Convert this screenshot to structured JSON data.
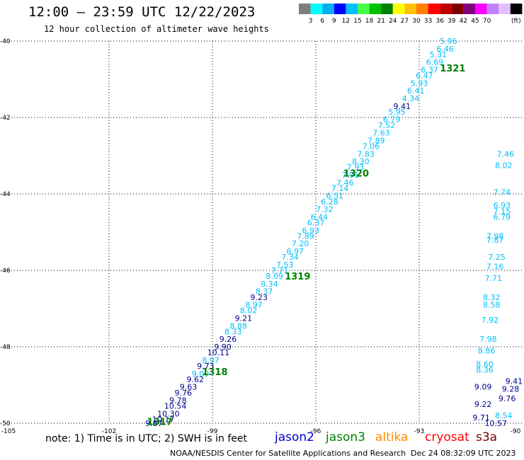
{
  "header": {
    "title": "12:00 – 23:59 UTC 12/22/2023",
    "subtitle": "12 hour collection of altimeter wave heights"
  },
  "colorbar": {
    "colors": [
      "#7f7f7f",
      "#00ffff",
      "#00b0f0",
      "#0000ff",
      "#00bfff",
      "#44ff44",
      "#00c000",
      "#008000",
      "#ffff00",
      "#ffc000",
      "#ff8000",
      "#ff0000",
      "#c00000",
      "#800000",
      "#800080",
      "#ff00ff",
      "#bf7fff",
      "#e0c0ff",
      "#000000"
    ],
    "labels": [
      "3",
      "6",
      "9",
      "12",
      "15",
      "18",
      "21",
      "24",
      "27",
      "30",
      "33",
      "36",
      "39",
      "42",
      "45",
      "70",
      "(ft)"
    ]
  },
  "note": "note:  1) Time is in UTC;  2) SWH is in feet",
  "legend": [
    {
      "label": "jason2",
      "color": "#0000cc"
    },
    {
      "label": "jason3",
      "color": "#008000"
    },
    {
      "label": "altika",
      "color": "#ff8c00"
    },
    {
      "label": "cryosat",
      "color": "#ff0000"
    },
    {
      "label": "s3a",
      "color": "#800000"
    }
  ],
  "footer": {
    "source": "NOAA/NESDIS Center for Satellite Applications and Research",
    "timestamp": "Dec 24 08:32:09 UTC 2023"
  },
  "chart_data": {
    "type": "scatter",
    "xlim": [
      -105,
      -90
    ],
    "ylim": [
      -50,
      -40
    ],
    "xticks": [
      "-105",
      "-102",
      "-99",
      "-96",
      "-93",
      "-90"
    ],
    "yticks": [
      "-40",
      "-42",
      "-44",
      "-46",
      "-48",
      "-50"
    ],
    "grid": true,
    "colors": {
      "cyan": "#00bfff",
      "navy": "#00008b",
      "time": "#008000",
      "red": "#ff0000"
    },
    "track_labels": [
      {
        "text": "1321",
        "lon": -92.4,
        "lat": -40.7
      },
      {
        "text": "1320",
        "lon": -95.2,
        "lat": -43.45
      },
      {
        "text": "1319",
        "lon": -96.9,
        "lat": -46.15
      },
      {
        "text": "1318",
        "lon": -99.3,
        "lat": -48.65
      },
      {
        "text": "1317",
        "lon": -100.9,
        "lat": -49.95
      }
    ],
    "points": [
      {
        "v": "5.96",
        "lon": -92.4,
        "lat": -40.0,
        "c": "cyan"
      },
      {
        "v": "6.46",
        "lon": -92.5,
        "lat": -40.2,
        "c": "cyan"
      },
      {
        "v": "5.31",
        "lon": -92.7,
        "lat": -40.35,
        "c": "cyan"
      },
      {
        "v": "6.69",
        "lon": -92.8,
        "lat": -40.55,
        "c": "cyan"
      },
      {
        "v": "6.37",
        "lon": -92.95,
        "lat": -40.75,
        "c": "cyan"
      },
      {
        "v": "6.47",
        "lon": -93.1,
        "lat": -40.9,
        "c": "cyan"
      },
      {
        "v": "5.93",
        "lon": -93.25,
        "lat": -41.1,
        "c": "cyan"
      },
      {
        "v": "6.41",
        "lon": -93.35,
        "lat": -41.3,
        "c": "cyan"
      },
      {
        "v": "4.34",
        "lon": -93.5,
        "lat": -41.5,
        "c": "cyan"
      },
      {
        "v": "9.41",
        "lon": -93.75,
        "lat": -41.7,
        "c": "navy"
      },
      {
        "v": "5.95",
        "lon": -93.9,
        "lat": -41.85,
        "c": "cyan"
      },
      {
        "v": "6.79",
        "lon": -94.05,
        "lat": -42.05,
        "c": "cyan"
      },
      {
        "v": "7.52",
        "lon": -94.2,
        "lat": -42.2,
        "c": "cyan"
      },
      {
        "v": "7.63",
        "lon": -94.35,
        "lat": -42.4,
        "c": "cyan"
      },
      {
        "v": "7.89",
        "lon": -94.5,
        "lat": -42.6,
        "c": "cyan"
      },
      {
        "v": "7.06",
        "lon": -94.65,
        "lat": -42.75,
        "c": "cyan"
      },
      {
        "v": "7.83",
        "lon": -94.8,
        "lat": -42.95,
        "c": "cyan"
      },
      {
        "v": "8.30",
        "lon": -94.95,
        "lat": -43.15,
        "c": "cyan"
      },
      {
        "v": "7.93",
        "lon": -95.1,
        "lat": -43.3,
        "c": "cyan"
      },
      {
        "v": "7.91",
        "lon": -95.25,
        "lat": -43.5,
        "c": "cyan"
      },
      {
        "v": "7.46",
        "lon": -95.4,
        "lat": -43.7,
        "c": "cyan"
      },
      {
        "v": "7.14",
        "lon": -95.55,
        "lat": -43.85,
        "c": "cyan"
      },
      {
        "v": "6.51",
        "lon": -95.7,
        "lat": -44.05,
        "c": "cyan"
      },
      {
        "v": "6.28",
        "lon": -95.85,
        "lat": -44.2,
        "c": "cyan"
      },
      {
        "v": "7.32",
        "lon": -96.0,
        "lat": -44.4,
        "c": "cyan"
      },
      {
        "v": "6.44",
        "lon": -96.15,
        "lat": -44.6,
        "c": "cyan"
      },
      {
        "v": "6.37",
        "lon": -96.25,
        "lat": -44.75,
        "c": "cyan"
      },
      {
        "v": "6.93",
        "lon": -96.4,
        "lat": -44.95,
        "c": "cyan"
      },
      {
        "v": "7.89",
        "lon": -96.55,
        "lat": -45.1,
        "c": "cyan"
      },
      {
        "v": "7.20",
        "lon": -96.7,
        "lat": -45.3,
        "c": "cyan"
      },
      {
        "v": "6.97",
        "lon": -96.85,
        "lat": -45.5,
        "c": "cyan"
      },
      {
        "v": "7.34",
        "lon": -97.0,
        "lat": -45.65,
        "c": "cyan"
      },
      {
        "v": "7.53",
        "lon": -97.15,
        "lat": -45.85,
        "c": "cyan"
      },
      {
        "v": "7.71",
        "lon": -97.3,
        "lat": -46.0,
        "c": "cyan"
      },
      {
        "v": "8.09",
        "lon": -97.45,
        "lat": -46.15,
        "c": "cyan"
      },
      {
        "v": "8.34",
        "lon": -97.6,
        "lat": -46.35,
        "c": "cyan"
      },
      {
        "v": "8.37",
        "lon": -97.75,
        "lat": -46.55,
        "c": "cyan"
      },
      {
        "v": "9.23",
        "lon": -97.9,
        "lat": -46.7,
        "c": "navy"
      },
      {
        "v": "8.97",
        "lon": -98.05,
        "lat": -46.9,
        "c": "cyan"
      },
      {
        "v": "8.02",
        "lon": -98.2,
        "lat": -47.05,
        "c": "cyan"
      },
      {
        "v": "9.21",
        "lon": -98.35,
        "lat": -47.25,
        "c": "navy"
      },
      {
        "v": "8.88",
        "lon": -98.5,
        "lat": -47.45,
        "c": "cyan"
      },
      {
        "v": "8.33",
        "lon": -98.65,
        "lat": -47.6,
        "c": "cyan"
      },
      {
        "v": "9.26",
        "lon": -98.8,
        "lat": -47.8,
        "c": "navy"
      },
      {
        "v": "9.90",
        "lon": -98.95,
        "lat": -48.0,
        "c": "navy"
      },
      {
        "v": "10.11",
        "lon": -99.15,
        "lat": -48.15,
        "c": "navy"
      },
      {
        "v": "8.97",
        "lon": -99.3,
        "lat": -48.35,
        "c": "cyan"
      },
      {
        "v": "9.73",
        "lon": -99.45,
        "lat": -48.5,
        "c": "navy"
      },
      {
        "v": "9.00",
        "lon": -99.6,
        "lat": -48.7,
        "c": "cyan"
      },
      {
        "v": "9.62",
        "lon": -99.75,
        "lat": -48.85,
        "c": "navy"
      },
      {
        "v": "9.63",
        "lon": -99.95,
        "lat": -49.05,
        "c": "navy"
      },
      {
        "v": "9.76",
        "lon": -100.1,
        "lat": -49.2,
        "c": "navy"
      },
      {
        "v": "9.78",
        "lon": -100.25,
        "lat": -49.4,
        "c": "navy"
      },
      {
        "v": "10.54",
        "lon": -100.4,
        "lat": -49.55,
        "c": "navy"
      },
      {
        "v": "10.30",
        "lon": -100.6,
        "lat": -49.75,
        "c": "navy"
      },
      {
        "v": "10.17",
        "lon": -100.75,
        "lat": -49.9,
        "c": "navy"
      },
      {
        "v": "9.87",
        "lon": -100.95,
        "lat": -50.0,
        "c": "navy"
      },
      {
        "v": "7.98",
        "lon": -91.05,
        "lat": -45.1,
        "c": "cyan"
      },
      {
        "v": "7.87",
        "lon": -91.05,
        "lat": -45.2,
        "c": "cyan"
      },
      {
        "v": "7.25",
        "lon": -91.0,
        "lat": -45.65,
        "c": "cyan"
      },
      {
        "v": "7.16",
        "lon": -91.05,
        "lat": -45.9,
        "c": "cyan"
      },
      {
        "v": "7.71",
        "lon": -91.1,
        "lat": -46.2,
        "c": "cyan"
      },
      {
        "v": "8.32",
        "lon": -91.15,
        "lat": -46.7,
        "c": "cyan"
      },
      {
        "v": "8.58",
        "lon": -91.15,
        "lat": -46.9,
        "c": "cyan"
      },
      {
        "v": "7.92",
        "lon": -91.2,
        "lat": -47.3,
        "c": "cyan"
      },
      {
        "v": "7.98",
        "lon": -91.25,
        "lat": -47.8,
        "c": "cyan"
      },
      {
        "v": "8.86",
        "lon": -91.3,
        "lat": -48.1,
        "c": "cyan"
      },
      {
        "v": "8.60",
        "lon": -91.35,
        "lat": -48.45,
        "c": "cyan"
      },
      {
        "v": "8.36",
        "lon": -91.35,
        "lat": -48.6,
        "c": "cyan"
      },
      {
        "v": "9.09",
        "lon": -91.4,
        "lat": -49.05,
        "c": "navy"
      },
      {
        "v": "9.41",
        "lon": -90.5,
        "lat": -48.9,
        "c": "navy"
      },
      {
        "v": "9.28",
        "lon": -90.6,
        "lat": -49.1,
        "c": "navy"
      },
      {
        "v": "9.76",
        "lon": -90.7,
        "lat": -49.35,
        "c": "navy"
      },
      {
        "v": "9.22",
        "lon": -91.4,
        "lat": -49.5,
        "c": "navy"
      },
      {
        "v": "8.54",
        "lon": -90.8,
        "lat": -49.8,
        "c": "cyan"
      },
      {
        "v": "9.71",
        "lon": -91.45,
        "lat": -49.85,
        "c": "navy"
      },
      {
        "v": "10.57",
        "lon": -91.1,
        "lat": -50.0,
        "c": "navy"
      },
      {
        "v": "6.79",
        "lon": -90.85,
        "lat": -44.6,
        "c": "cyan"
      },
      {
        "v": "7.15",
        "lon": -90.85,
        "lat": -44.45,
        "c": "cyan"
      },
      {
        "v": "6.93",
        "lon": -90.85,
        "lat": -44.3,
        "c": "cyan"
      },
      {
        "v": "7.74",
        "lon": -90.85,
        "lat": -43.95,
        "c": "cyan"
      },
      {
        "v": "8.02",
        "lon": -90.8,
        "lat": -43.25,
        "c": "cyan"
      },
      {
        "v": "7.46",
        "lon": -90.75,
        "lat": -42.95,
        "c": "cyan"
      }
    ]
  }
}
